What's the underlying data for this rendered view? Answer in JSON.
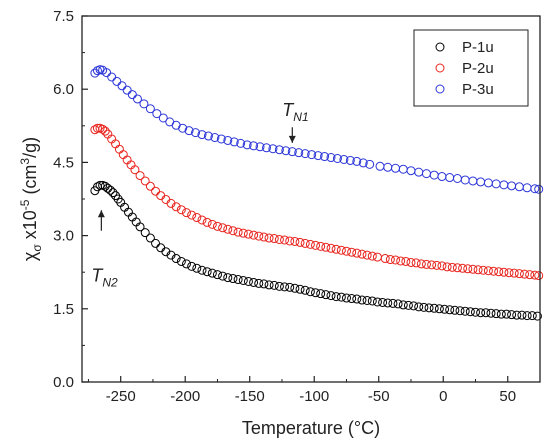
{
  "chart_data": {
    "type": "scatter",
    "title": "",
    "xlabel": "Temperature (°C)",
    "ylabel_parts": {
      "chi": "χ",
      "sub": "σ",
      "mid": " x10",
      "exp": "-5",
      "unit_pre": " (cm",
      "unit_exp": "3",
      "unit_post": "/g)"
    },
    "xlim": [
      -280,
      75
    ],
    "ylim": [
      0,
      7.5
    ],
    "x_ticks": [
      -250,
      -200,
      -150,
      -100,
      -50,
      0,
      50
    ],
    "x_tick_labels": [
      "-250",
      "-200",
      "-150",
      "-100",
      "-50",
      "0",
      "50"
    ],
    "y_ticks": [
      0,
      1.5,
      3.0,
      4.5,
      6.0,
      7.5
    ],
    "y_tick_labels": [
      "0.0",
      "1.5",
      "3.0",
      "4.5",
      "6.0",
      "7.5"
    ],
    "grid": false,
    "legend_position": "top-right",
    "series": [
      {
        "name": "P-1u",
        "color": "#000000",
        "points": [
          [
            -270,
            3.92
          ],
          [
            -268,
            4.0
          ],
          [
            -266,
            4.03
          ],
          [
            -264,
            4.03
          ],
          [
            -262,
            4.01
          ],
          [
            -260,
            3.97
          ],
          [
            -258,
            3.93
          ],
          [
            -256,
            3.88
          ],
          [
            -254,
            3.82
          ],
          [
            -252,
            3.75
          ],
          [
            -250,
            3.68
          ],
          [
            -247,
            3.58
          ],
          [
            -244,
            3.48
          ],
          [
            -241,
            3.38
          ],
          [
            -238,
            3.28
          ],
          [
            -235,
            3.18
          ],
          [
            -231,
            3.06
          ],
          [
            -227,
            2.95
          ],
          [
            -223,
            2.84
          ],
          [
            -219,
            2.75
          ],
          [
            -215,
            2.67
          ],
          [
            -211,
            2.6
          ],
          [
            -207,
            2.53
          ],
          [
            -203,
            2.47
          ],
          [
            -199,
            2.42
          ],
          [
            -195,
            2.37
          ],
          [
            -191,
            2.33
          ],
          [
            -187,
            2.29
          ],
          [
            -183,
            2.26
          ],
          [
            -179,
            2.23
          ],
          [
            -175,
            2.2
          ],
          [
            -171,
            2.17
          ],
          [
            -167,
            2.14
          ],
          [
            -163,
            2.12
          ],
          [
            -159,
            2.1
          ],
          [
            -155,
            2.08
          ],
          [
            -151,
            2.06
          ],
          [
            -147,
            2.04
          ],
          [
            -143,
            2.02
          ],
          [
            -139,
            2.01
          ],
          [
            -135,
            1.99
          ],
          [
            -131,
            1.98
          ],
          [
            -127,
            1.96
          ],
          [
            -123,
            1.95
          ],
          [
            -119,
            1.94
          ],
          [
            -115,
            1.92
          ],
          [
            -111,
            1.9
          ],
          [
            -107,
            1.88
          ],
          [
            -103,
            1.85
          ],
          [
            -99,
            1.83
          ],
          [
            -95,
            1.81
          ],
          [
            -91,
            1.79
          ],
          [
            -87,
            1.77
          ],
          [
            -83,
            1.75
          ],
          [
            -79,
            1.74
          ],
          [
            -75,
            1.72
          ],
          [
            -71,
            1.71
          ],
          [
            -67,
            1.7
          ],
          [
            -63,
            1.68
          ],
          [
            -59,
            1.67
          ],
          [
            -55,
            1.66
          ],
          [
            -51,
            1.64
          ],
          [
            -47,
            1.63
          ],
          [
            -43,
            1.62
          ],
          [
            -39,
            1.61
          ],
          [
            -35,
            1.6
          ],
          [
            -31,
            1.58
          ],
          [
            -27,
            1.57
          ],
          [
            -23,
            1.56
          ],
          [
            -19,
            1.54
          ],
          [
            -15,
            1.53
          ],
          [
            -11,
            1.52
          ],
          [
            -7,
            1.51
          ],
          [
            -3,
            1.5
          ],
          [
            1,
            1.49
          ],
          [
            5,
            1.48
          ],
          [
            9,
            1.47
          ],
          [
            13,
            1.46
          ],
          [
            17,
            1.45
          ],
          [
            21,
            1.44
          ],
          [
            25,
            1.43
          ],
          [
            29,
            1.42
          ],
          [
            33,
            1.42
          ],
          [
            37,
            1.41
          ],
          [
            41,
            1.4
          ],
          [
            45,
            1.39
          ],
          [
            49,
            1.39
          ],
          [
            53,
            1.38
          ],
          [
            57,
            1.37
          ],
          [
            61,
            1.37
          ],
          [
            65,
            1.36
          ],
          [
            69,
            1.36
          ],
          [
            73,
            1.35
          ]
        ]
      },
      {
        "name": "P-2u",
        "color": "#e8231d",
        "points": [
          [
            -270,
            5.17
          ],
          [
            -268,
            5.2
          ],
          [
            -266,
            5.2
          ],
          [
            -264,
            5.18
          ],
          [
            -262,
            5.14
          ],
          [
            -260,
            5.08
          ],
          [
            -257,
            4.98
          ],
          [
            -254,
            4.88
          ],
          [
            -251,
            4.77
          ],
          [
            -248,
            4.66
          ],
          [
            -245,
            4.55
          ],
          [
            -242,
            4.45
          ],
          [
            -239,
            4.35
          ],
          [
            -235,
            4.23
          ],
          [
            -231,
            4.12
          ],
          [
            -227,
            4.01
          ],
          [
            -223,
            3.91
          ],
          [
            -219,
            3.82
          ],
          [
            -215,
            3.74
          ],
          [
            -211,
            3.66
          ],
          [
            -207,
            3.59
          ],
          [
            -203,
            3.53
          ],
          [
            -199,
            3.47
          ],
          [
            -195,
            3.42
          ],
          [
            -191,
            3.37
          ],
          [
            -187,
            3.32
          ],
          [
            -183,
            3.27
          ],
          [
            -179,
            3.23
          ],
          [
            -175,
            3.19
          ],
          [
            -171,
            3.16
          ],
          [
            -167,
            3.13
          ],
          [
            -163,
            3.1
          ],
          [
            -159,
            3.07
          ],
          [
            -155,
            3.05
          ],
          [
            -151,
            3.03
          ],
          [
            -147,
            3.01
          ],
          [
            -143,
            2.99
          ],
          [
            -139,
            2.97
          ],
          [
            -135,
            2.95
          ],
          [
            -131,
            2.94
          ],
          [
            -127,
            2.92
          ],
          [
            -123,
            2.91
          ],
          [
            -119,
            2.89
          ],
          [
            -115,
            2.88
          ],
          [
            -111,
            2.86
          ],
          [
            -107,
            2.84
          ],
          [
            -103,
            2.82
          ],
          [
            -99,
            2.8
          ],
          [
            -95,
            2.78
          ],
          [
            -91,
            2.76
          ],
          [
            -87,
            2.74
          ],
          [
            -83,
            2.72
          ],
          [
            -79,
            2.7
          ],
          [
            -75,
            2.68
          ],
          [
            -71,
            2.66
          ],
          [
            -67,
            2.64
          ],
          [
            -63,
            2.62
          ],
          [
            -59,
            2.6
          ],
          [
            -55,
            2.58
          ],
          [
            -51,
            2.56
          ],
          [
            -45,
            2.53
          ],
          [
            -41,
            2.51
          ],
          [
            -37,
            2.5
          ],
          [
            -33,
            2.48
          ],
          [
            -29,
            2.47
          ],
          [
            -25,
            2.45
          ],
          [
            -21,
            2.44
          ],
          [
            -17,
            2.42
          ],
          [
            -13,
            2.41
          ],
          [
            -9,
            2.4
          ],
          [
            -5,
            2.39
          ],
          [
            -1,
            2.38
          ],
          [
            3,
            2.36
          ],
          [
            7,
            2.35
          ],
          [
            11,
            2.34
          ],
          [
            15,
            2.33
          ],
          [
            19,
            2.32
          ],
          [
            23,
            2.31
          ],
          [
            27,
            2.3
          ],
          [
            31,
            2.29
          ],
          [
            35,
            2.28
          ],
          [
            39,
            2.27
          ],
          [
            43,
            2.26
          ],
          [
            47,
            2.25
          ],
          [
            51,
            2.24
          ],
          [
            55,
            2.23
          ],
          [
            59,
            2.22
          ],
          [
            63,
            2.21
          ],
          [
            67,
            2.2
          ],
          [
            71,
            2.19
          ],
          [
            74,
            2.18
          ]
        ]
      },
      {
        "name": "P-3u",
        "color": "#2b35d8",
        "points": [
          [
            -270,
            6.33
          ],
          [
            -268,
            6.38
          ],
          [
            -266,
            6.4
          ],
          [
            -264,
            6.39
          ],
          [
            -261,
            6.34
          ],
          [
            -257,
            6.25
          ],
          [
            -253,
            6.16
          ],
          [
            -249,
            6.07
          ],
          [
            -245,
            5.98
          ],
          [
            -241,
            5.89
          ],
          [
            -237,
            5.8
          ],
          [
            -232,
            5.7
          ],
          [
            -227,
            5.6
          ],
          [
            -222,
            5.5
          ],
          [
            -217,
            5.41
          ],
          [
            -212,
            5.33
          ],
          [
            -207,
            5.26
          ],
          [
            -202,
            5.2
          ],
          [
            -197,
            5.15
          ],
          [
            -192,
            5.11
          ],
          [
            -187,
            5.07
          ],
          [
            -182,
            5.04
          ],
          [
            -177,
            5.01
          ],
          [
            -172,
            4.98
          ],
          [
            -167,
            4.95
          ],
          [
            -162,
            4.92
          ],
          [
            -157,
            4.89
          ],
          [
            -152,
            4.86
          ],
          [
            -147,
            4.84
          ],
          [
            -142,
            4.82
          ],
          [
            -137,
            4.8
          ],
          [
            -132,
            4.78
          ],
          [
            -127,
            4.76
          ],
          [
            -122,
            4.74
          ],
          [
            -117,
            4.72
          ],
          [
            -112,
            4.7
          ],
          [
            -107,
            4.68
          ],
          [
            -102,
            4.66
          ],
          [
            -97,
            4.64
          ],
          [
            -92,
            4.62
          ],
          [
            -87,
            4.6
          ],
          [
            -82,
            4.58
          ],
          [
            -77,
            4.56
          ],
          [
            -72,
            4.54
          ],
          [
            -67,
            4.52
          ],
          [
            -62,
            4.49
          ],
          [
            -57,
            4.46
          ],
          [
            -49,
            4.42
          ],
          [
            -43,
            4.4
          ],
          [
            -37,
            4.38
          ],
          [
            -31,
            4.36
          ],
          [
            -25,
            4.33
          ],
          [
            -19,
            4.3
          ],
          [
            -13,
            4.27
          ],
          [
            -7,
            4.24
          ],
          [
            -1,
            4.21
          ],
          [
            5,
            4.19
          ],
          [
            11,
            4.17
          ],
          [
            17,
            4.14
          ],
          [
            23,
            4.12
          ],
          [
            29,
            4.1
          ],
          [
            35,
            4.08
          ],
          [
            41,
            4.06
          ],
          [
            47,
            4.04
          ],
          [
            53,
            4.02
          ],
          [
            59,
            4.0
          ],
          [
            65,
            3.98
          ],
          [
            71,
            3.96
          ],
          [
            74,
            3.95
          ]
        ]
      }
    ],
    "annotations": [
      {
        "id": "tn1",
        "main": "T",
        "sub": "N1",
        "x": -117,
        "y_arrow_top": 5.22,
        "y_arrow_tip": 4.9,
        "y_text": 5.45,
        "arrow": "down"
      },
      {
        "id": "tn2",
        "main": "T",
        "sub": "N2",
        "x": -265,
        "y_arrow_top": 3.1,
        "y_arrow_tip": 3.52,
        "y_text": 2.06,
        "arrow": "up"
      }
    ]
  }
}
